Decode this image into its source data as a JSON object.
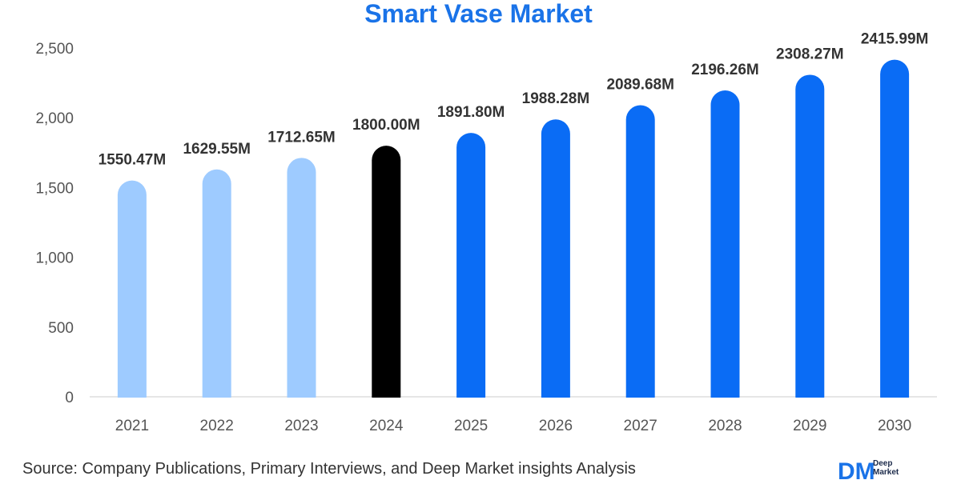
{
  "chart_data": {
    "type": "bar",
    "title": "Smart Vase Market",
    "categories": [
      "2021",
      "2022",
      "2023",
      "2024",
      "2025",
      "2026",
      "2027",
      "2028",
      "2029",
      "2030"
    ],
    "values": [
      1550.47,
      1629.55,
      1712.65,
      1800.0,
      1891.8,
      1988.28,
      2089.68,
      2196.26,
      2308.27,
      2415.99
    ],
    "data_labels": [
      "1550.47M",
      "1629.55M",
      "1712.65M",
      "1800.00M",
      "1891.80M",
      "1988.28M",
      "2089.68M",
      "2196.26M",
      "2308.27M",
      "2415.99M"
    ],
    "bar_colors": [
      "#9ecbff",
      "#9ecbff",
      "#9ecbff",
      "#000000",
      "#0a6cf5",
      "#0a6cf5",
      "#0a6cf5",
      "#0a6cf5",
      "#0a6cf5",
      "#0a6cf5"
    ],
    "yticks": [
      0,
      500,
      1000,
      1500,
      2000,
      2500
    ],
    "ytick_labels": [
      "0",
      "500",
      "1,000",
      "1,500",
      "2,000",
      "2,500"
    ],
    "ylim": [
      0,
      2500
    ],
    "xlabel": "",
    "ylabel": "",
    "grid": false
  },
  "footer": {
    "source_prefix": "Source",
    "source_text": ": Company Publications, Primary Interviews, and Deep Market insights Analysis"
  },
  "logo": {
    "mark": "DM",
    "line1": "Deep",
    "line2": "Market"
  },
  "colors": {
    "title": "#1a73e8",
    "axis": "#cccccc"
  }
}
